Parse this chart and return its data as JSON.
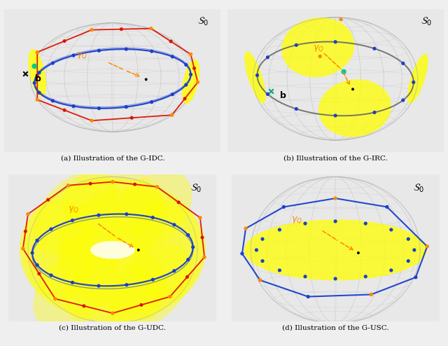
{
  "captions": [
    "(a) Illustration of the G-IDC.",
    "(b) Illustration of the G-IRC.",
    "(c) Illustration of the G-UDC.",
    "(d) Illustration of the G-USC."
  ],
  "S0_label": "$\\mathcal{S}_0$",
  "bg_color": "#efefef",
  "panel_bg": "#e8e8e8",
  "yellow_color": "#ffff00",
  "blue_color": "#1a3fcc",
  "red_color": "#dd1100",
  "orange_color": "#ff8800",
  "green_color": "#00cc88",
  "sphere_color": "#aaaaaa",
  "dark_gray": "#666666"
}
